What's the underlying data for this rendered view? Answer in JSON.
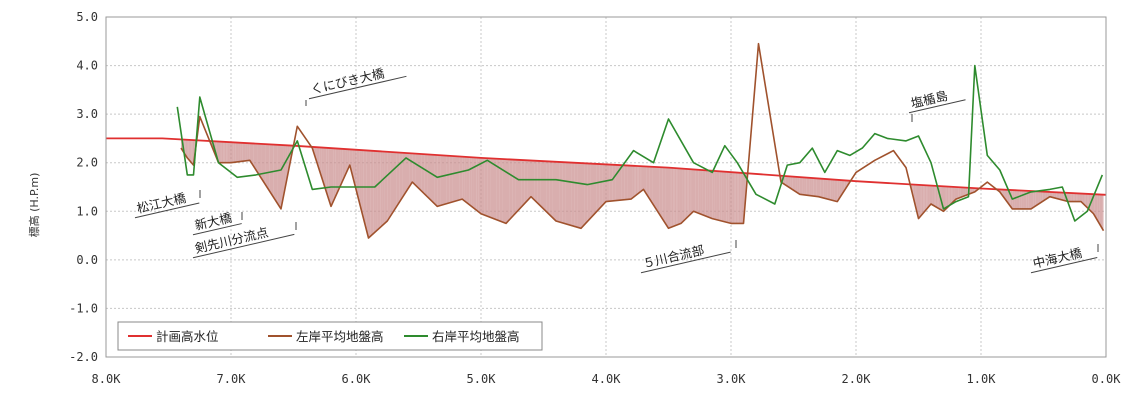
{
  "chart_data": {
    "type": "line",
    "ylabel": "標高 (H.P.m)",
    "xlim": [
      8.0,
      0.0
    ],
    "ylim": [
      -2.0,
      5.0
    ],
    "x_ticks": [
      "8.0K",
      "7.0K",
      "6.0K",
      "5.0K",
      "4.0K",
      "3.0K",
      "2.0K",
      "1.0K",
      "0.0K"
    ],
    "y_ticks": [
      "5.0",
      "4.0",
      "3.0",
      "2.0",
      "1.0",
      "0.0",
      "-1.0",
      "-2.0"
    ],
    "fill_between": {
      "upper": "計画高水位",
      "lower": "左岸平均地盤高",
      "color": "#c98b8b"
    },
    "series": [
      {
        "name": "計画高水位",
        "color": "#e03030",
        "x": [
          8.0,
          7.55,
          6.5,
          5.0,
          3.5,
          2.0,
          1.0,
          0.0
        ],
        "y": [
          2.5,
          2.5,
          2.35,
          2.1,
          1.9,
          1.62,
          1.47,
          1.34
        ]
      },
      {
        "name": "左岸平均地盤高",
        "color": "#a0522d",
        "x": [
          7.4,
          7.35,
          7.3,
          7.25,
          7.1,
          7.0,
          6.85,
          6.6,
          6.47,
          6.35,
          6.2,
          6.05,
          5.9,
          5.75,
          5.55,
          5.35,
          5.15,
          5.0,
          4.8,
          4.6,
          4.4,
          4.2,
          4.0,
          3.8,
          3.7,
          3.5,
          3.4,
          3.3,
          3.15,
          3.0,
          2.9,
          2.78,
          2.72,
          2.6,
          2.45,
          2.3,
          2.15,
          2.0,
          1.85,
          1.7,
          1.6,
          1.5,
          1.4,
          1.3,
          1.2,
          1.05,
          0.95,
          0.85,
          0.75,
          0.6,
          0.45,
          0.3,
          0.2,
          0.1,
          0.02
        ],
        "y": [
          2.3,
          2.1,
          1.95,
          2.95,
          2.0,
          2.0,
          2.05,
          1.05,
          2.75,
          2.3,
          1.1,
          1.95,
          0.45,
          0.8,
          1.6,
          1.1,
          1.25,
          0.95,
          0.75,
          1.3,
          0.8,
          0.65,
          1.2,
          1.25,
          1.45,
          0.65,
          0.75,
          1.0,
          0.85,
          0.75,
          0.75,
          4.45,
          3.5,
          1.6,
          1.35,
          1.3,
          1.2,
          1.8,
          2.05,
          2.25,
          1.9,
          0.85,
          1.15,
          1.0,
          1.25,
          1.4,
          1.6,
          1.4,
          1.05,
          1.05,
          1.3,
          1.2,
          1.2,
          0.95,
          0.6
        ]
      },
      {
        "name": "右岸平均地盤高",
        "color": "#2e8b2e",
        "x": [
          7.43,
          7.35,
          7.3,
          7.25,
          7.1,
          6.95,
          6.8,
          6.6,
          6.47,
          6.35,
          6.2,
          6.05,
          5.85,
          5.6,
          5.35,
          5.1,
          4.95,
          4.7,
          4.4,
          4.15,
          3.95,
          3.78,
          3.62,
          3.5,
          3.3,
          3.15,
          3.05,
          2.95,
          2.8,
          2.65,
          2.55,
          2.45,
          2.35,
          2.25,
          2.15,
          2.05,
          1.95,
          1.85,
          1.75,
          1.6,
          1.5,
          1.4,
          1.3,
          1.2,
          1.1,
          1.05,
          0.95,
          0.85,
          0.75,
          0.6,
          0.45,
          0.35,
          0.25,
          0.15,
          0.03
        ],
        "y": [
          3.15,
          1.75,
          1.75,
          3.35,
          2.0,
          1.7,
          1.75,
          1.85,
          2.45,
          1.45,
          1.5,
          1.5,
          1.5,
          2.1,
          1.7,
          1.85,
          2.05,
          1.65,
          1.65,
          1.55,
          1.65,
          2.25,
          2.0,
          2.9,
          2.0,
          1.8,
          2.35,
          2.0,
          1.35,
          1.15,
          1.95,
          2.0,
          2.3,
          1.8,
          2.25,
          2.15,
          2.3,
          2.6,
          2.5,
          2.45,
          2.55,
          2.0,
          1.05,
          1.2,
          1.3,
          4.0,
          2.15,
          1.85,
          1.25,
          1.4,
          1.45,
          1.5,
          0.8,
          1.0,
          1.75
        ]
      }
    ],
    "annotations": [
      {
        "text": "くにびき大橋",
        "x": 6.4
      },
      {
        "text": "松江大橋",
        "x": 7.45
      },
      {
        "text": "新大橋",
        "x": 6.95
      },
      {
        "text": "剣先川分流点",
        "x": 6.4
      },
      {
        "text": "５川合流部",
        "x": 2.95
      },
      {
        "text": "塩楯島",
        "x": 1.55
      },
      {
        "text": "中海大橋",
        "x": 0.0
      }
    ],
    "legend_position": "bottom-left"
  }
}
